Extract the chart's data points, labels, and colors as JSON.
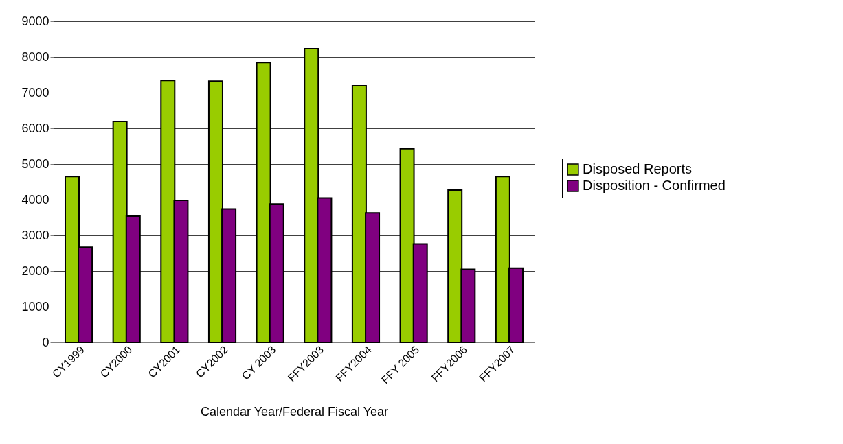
{
  "chart_data": {
    "type": "bar",
    "xlabel": "Calendar Year/Federal Fiscal Year",
    "categories": [
      "CY1999",
      "CY2000",
      "CY2001",
      "CY2002",
      "CY 2003",
      "FFY2003",
      "FFY2004",
      "FFY 2005",
      "FFY2006",
      "FFY2007"
    ],
    "series": [
      {
        "name": "Disposed Reports",
        "color": "#99cc00",
        "values": [
          4650,
          6190,
          7340,
          7320,
          7840,
          8230,
          7190,
          5430,
          4270,
          4650
        ]
      },
      {
        "name": "Disposition - Confirmed",
        "color": "#800080",
        "values": [
          2670,
          3540,
          3980,
          3740,
          3880,
          4050,
          3630,
          2760,
          2050,
          2080
        ]
      }
    ],
    "ylim": [
      0,
      9000
    ],
    "yticks": [
      0,
      1000,
      2000,
      3000,
      4000,
      5000,
      6000,
      7000,
      8000,
      9000
    ],
    "grid": "y",
    "legend": "right"
  }
}
